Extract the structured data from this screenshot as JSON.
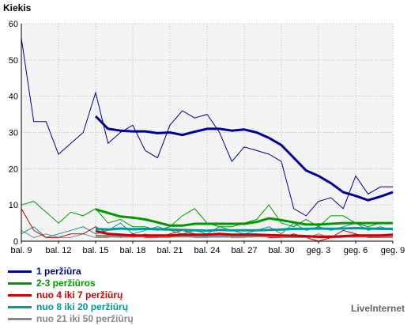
{
  "chart_data": {
    "type": "line",
    "title": "",
    "ylabel": "Kiekis",
    "xlabel": "",
    "ylim": [
      0,
      60
    ],
    "yticks": [
      0,
      10,
      20,
      30,
      40,
      50,
      60
    ],
    "grid": true,
    "legend_position": "bottom-left",
    "x_tick_labels": [
      "bal. 9",
      "bal. 12",
      "bal. 15",
      "bal. 18",
      "bal. 21",
      "bal. 24",
      "bal. 27",
      "bal. 30",
      "geg. 3",
      "geg. 6",
      "geg. 9"
    ],
    "x_tick_indices": [
      0,
      3,
      6,
      9,
      12,
      15,
      18,
      21,
      24,
      27,
      30
    ],
    "n_points": 31,
    "series": [
      {
        "name": "1 peržiūra",
        "color": "#000099",
        "values": [
          56,
          33,
          33,
          24,
          27,
          30,
          41,
          27,
          30,
          32,
          25,
          23,
          32,
          36,
          34,
          35,
          30,
          22,
          26,
          25,
          24,
          22,
          9,
          7,
          11,
          12,
          9,
          18,
          13,
          15,
          15
        ]
      },
      {
        "name": "2-3 peržiūros",
        "color": "#009900",
        "values": [
          10,
          11,
          8,
          5,
          8,
          7,
          9,
          5,
          6,
          4,
          4,
          3,
          4,
          7,
          9,
          5,
          4,
          4,
          5,
          6,
          10,
          5,
          4,
          6,
          4,
          7,
          7,
          5,
          4,
          5,
          5
        ]
      },
      {
        "name": "nuo 4 iki 7 peržiūrų",
        "color": "#cc0000",
        "values": [
          9,
          3,
          1,
          1,
          2,
          2,
          4,
          2,
          1,
          2,
          1,
          1,
          2,
          3,
          2,
          1,
          2,
          1,
          2,
          2,
          1,
          1,
          2,
          1,
          0,
          1,
          3,
          2,
          1,
          1,
          2
        ]
      },
      {
        "name": "nuo 8 iki 20 peržiūrų",
        "color": "#009999",
        "values": [
          2,
          4,
          1,
          2,
          3,
          4,
          2,
          3,
          5,
          2,
          3,
          4,
          3,
          2,
          3,
          2,
          4,
          3,
          2,
          3,
          4,
          2,
          5,
          3,
          4,
          3,
          4,
          5,
          3,
          4,
          3
        ]
      },
      {
        "name": "nuo 21 iki 50 peržiūrų",
        "color": "#888888",
        "values": [
          3,
          1,
          2,
          1,
          1,
          2,
          1,
          1,
          2,
          1,
          2,
          1,
          1,
          2,
          1,
          1,
          2,
          1,
          1,
          2,
          1,
          1,
          1,
          1,
          2,
          1,
          1,
          2,
          1,
          1,
          1
        ]
      }
    ],
    "moving_average_series": [
      {
        "name": "1 peržiūra",
        "color": "#000099",
        "values": [
          null,
          null,
          null,
          null,
          null,
          null,
          34.5,
          31,
          30.5,
          30.3,
          30.3,
          29.8,
          30,
          29.3,
          30.2,
          31,
          31,
          30.5,
          30.8,
          30,
          28.5,
          26.5,
          23,
          19.5,
          18,
          16,
          13.5,
          12.5,
          11.3,
          12.3,
          13.5
        ]
      },
      {
        "name": "2-3 peržiūros",
        "color": "#009900",
        "values": [
          null,
          null,
          null,
          null,
          null,
          null,
          8.8,
          7.8,
          6.8,
          6.5,
          6,
          5.2,
          4.3,
          4.3,
          4.8,
          4.8,
          4.8,
          4.8,
          4.8,
          5.3,
          6.3,
          5.8,
          5.2,
          4.6,
          4.6,
          4.8,
          5,
          5,
          5,
          5,
          5
        ]
      },
      {
        "name": "nuo 4 iki 7 peržiūrų",
        "color": "#cc0000",
        "values": [
          null,
          null,
          null,
          null,
          null,
          null,
          2.8,
          2,
          1.8,
          1.6,
          1.6,
          1.6,
          1.6,
          1.8,
          1.8,
          1.8,
          2,
          1.8,
          1.8,
          1.8,
          1.7,
          1.6,
          1.5,
          1.4,
          1.2,
          1.2,
          1.4,
          1.6,
          1.6,
          1.6,
          1.8
        ]
      },
      {
        "name": "nuo 8 iki 20 peržiūrų",
        "color": "#009999",
        "values": [
          null,
          null,
          null,
          null,
          null,
          null,
          3.4,
          3.2,
          3.5,
          3.3,
          3.4,
          3.3,
          3.2,
          3.1,
          3,
          2.9,
          3.1,
          3,
          3,
          3,
          3.1,
          3.2,
          3.4,
          3.4,
          3.5,
          3.4,
          3.5,
          3.6,
          3.5,
          3.4,
          3.4
        ]
      },
      {
        "name": "nuo 21 iki 50 peržiūrų",
        "color": "#888888",
        "values": [
          null,
          null,
          null,
          null,
          null,
          null,
          1.5,
          1.4,
          1.3,
          1.3,
          1.4,
          1.3,
          1.3,
          1.4,
          1.3,
          1.3,
          1.3,
          1.3,
          1.3,
          1.4,
          1.4,
          1.3,
          1.2,
          1.2,
          1.3,
          1.3,
          1.3,
          1.3,
          1.3,
          1.2,
          1.2
        ]
      }
    ]
  },
  "watermark": "LiveInternet",
  "colors": {
    "plot_background": "#f4f4f4",
    "grid": "#bbbbbb",
    "axis": "#000000"
  }
}
